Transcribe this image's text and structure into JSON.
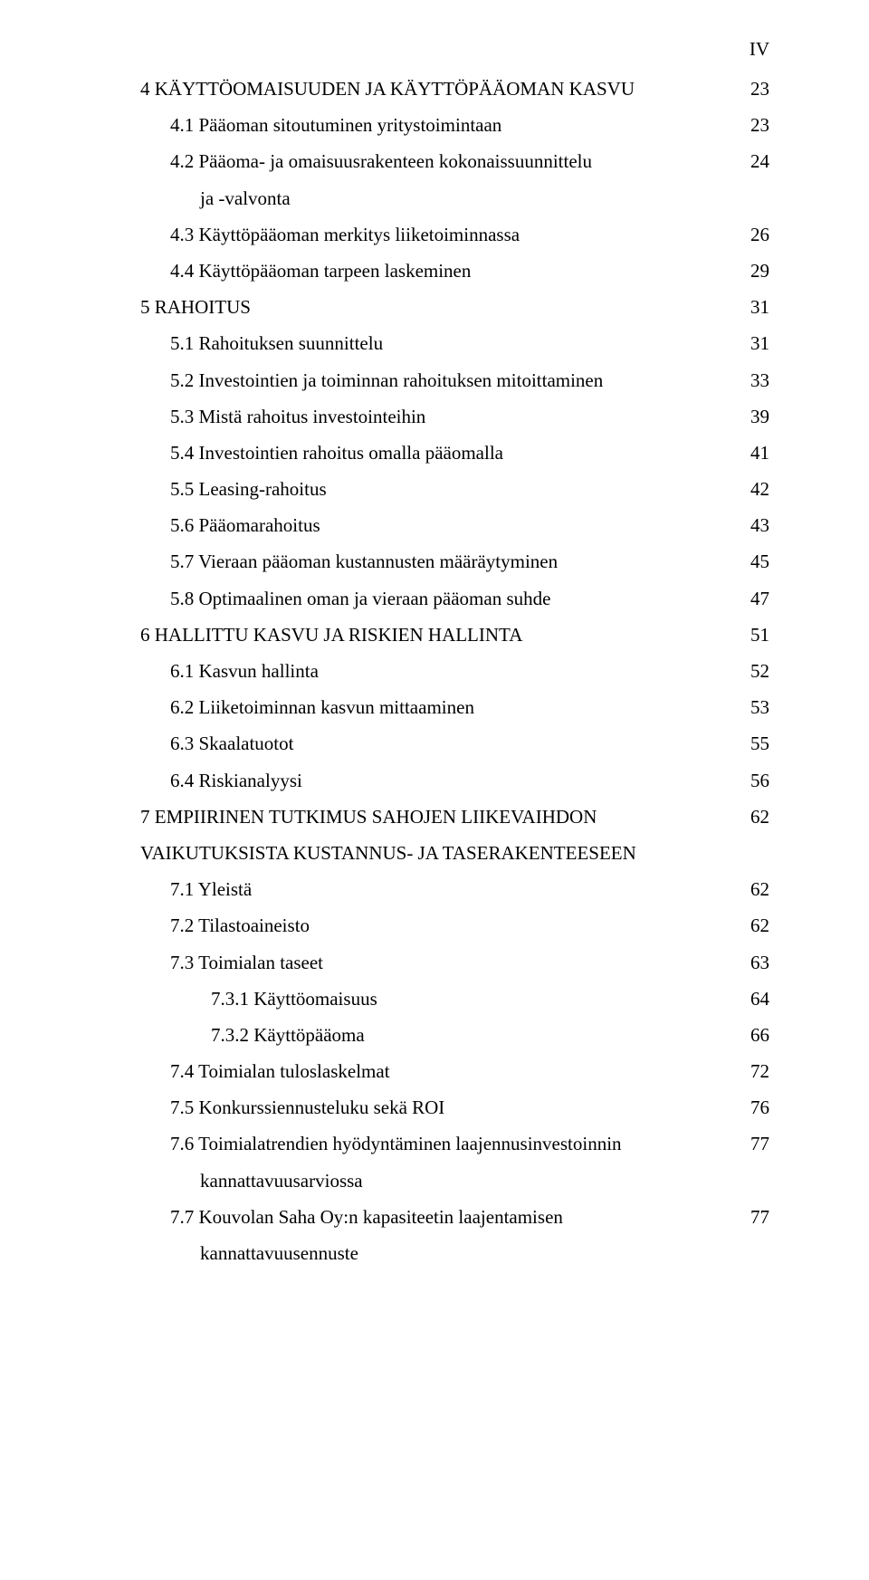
{
  "page_number_label": "IV",
  "font_family": "Times New Roman",
  "text_color": "#000000",
  "background_color": "#ffffff",
  "font_size_pt": 16,
  "entries": [
    {
      "indent": 0,
      "label": "4 KÄYTTÖOMAISUUDEN JA KÄYTTÖPÄÄOMAN KASVU",
      "page": "23"
    },
    {
      "indent": 1,
      "label": "4.1 Pääoman sitoutuminen yritystoimintaan",
      "page": "23"
    },
    {
      "indent": 1,
      "label": "4.2 Pääoma- ja omaisuusrakenteen kokonaissuunnittelu",
      "page": "24",
      "continuation": "ja -valvonta"
    },
    {
      "indent": 1,
      "label": "4.3 Käyttöpääoman merkitys liiketoiminnassa",
      "page": "26"
    },
    {
      "indent": 1,
      "label": "4.4 Käyttöpääoman tarpeen laskeminen",
      "page": "29"
    },
    {
      "indent": 0,
      "label": "5 RAHOITUS",
      "page": "31"
    },
    {
      "indent": 1,
      "label": "5.1 Rahoituksen suunnittelu",
      "page": "31"
    },
    {
      "indent": 1,
      "label": "5.2 Investointien ja toiminnan rahoituksen mitoittaminen",
      "page": "33"
    },
    {
      "indent": 1,
      "label": "5.3 Mistä rahoitus investointeihin",
      "page": "39"
    },
    {
      "indent": 1,
      "label": "5.4 Investointien rahoitus omalla pääomalla",
      "page": "41"
    },
    {
      "indent": 1,
      "label": "5.5 Leasing-rahoitus",
      "page": "42"
    },
    {
      "indent": 1,
      "label": "5.6 Pääomarahoitus",
      "page": "43"
    },
    {
      "indent": 1,
      "label": "5.7 Vieraan pääoman kustannusten määräytyminen",
      "page": "45"
    },
    {
      "indent": 1,
      "label": "5.8 Optimaalinen oman ja vieraan pääoman suhde",
      "page": "47"
    },
    {
      "indent": 0,
      "label": "6 HALLITTU KASVU JA RISKIEN HALLINTA",
      "page": "51"
    },
    {
      "indent": 1,
      "label": "6.1 Kasvun hallinta",
      "page": "52"
    },
    {
      "indent": 1,
      "label": "6.2 Liiketoiminnan kasvun mittaaminen",
      "page": "53"
    },
    {
      "indent": 1,
      "label": "6.3 Skaalatuotot",
      "page": "55"
    },
    {
      "indent": 1,
      "label": "6.4 Riskianalyysi",
      "page": "56"
    },
    {
      "indent": 0,
      "label": "7 EMPIIRINEN TUTKIMUS SAHOJEN LIIKEVAIHDON",
      "page": "62"
    },
    {
      "indent": 0,
      "label": "VAIKUTUKSISTA KUSTANNUS- JA TASERAKENTEESEEN",
      "page": ""
    },
    {
      "indent": 1,
      "label": "7.1 Yleistä",
      "page": "62"
    },
    {
      "indent": 1,
      "label": "7.2 Tilastoaineisto",
      "page": "62"
    },
    {
      "indent": 1,
      "label": "7.3 Toimialan taseet",
      "page": "63"
    },
    {
      "indent": 2,
      "label": "7.3.1 Käyttöomaisuus",
      "page": "64"
    },
    {
      "indent": 2,
      "label": "7.3.2 Käyttöpääoma",
      "page": "66"
    },
    {
      "indent": 1,
      "label": "7.4 Toimialan tuloslaskelmat",
      "page": "72"
    },
    {
      "indent": 1,
      "label": "7.5 Konkurssiennusteluku sekä ROI",
      "page": "76"
    },
    {
      "indent": 1,
      "label": "7.6 Toimialatrendien hyödyntäminen laajennusinvestoinnin",
      "page": "77",
      "continuation": "kannattavuusarviossa"
    },
    {
      "indent": 1,
      "label": "7.7 Kouvolan Saha Oy:n kapasiteetin laajentamisen",
      "page": "77",
      "continuation": "kannattavuusennuste"
    }
  ]
}
